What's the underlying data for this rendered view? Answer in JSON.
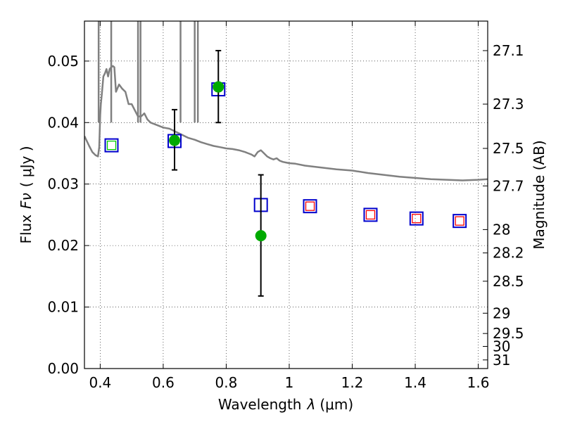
{
  "chart_data": {
    "type": "scatter",
    "xlabel": "Wavelength",
    "xlabel_symbol": "λ",
    "xlabel_unit": "(μm)",
    "ylabel": "Flux",
    "ylabel_symbol": "Fν",
    "ylabel_unit": "( μJy )",
    "y2label": "Magnitude (AB)",
    "xlim": [
      0.35,
      1.63
    ],
    "ylim": [
      0.0,
      0.0565
    ],
    "x_ticks": [
      0.4,
      0.6,
      0.8,
      1.0,
      1.2,
      1.4,
      1.6
    ],
    "x_tick_labels": [
      "0.4",
      "0.6",
      "0.8",
      "1",
      "1.2",
      "1.4",
      "1.6"
    ],
    "y_ticks": [
      0.0,
      0.01,
      0.02,
      0.03,
      0.04,
      0.05
    ],
    "y_tick_labels": [
      "0.00",
      "0.01",
      "0.02",
      "0.03",
      "0.04",
      "0.05"
    ],
    "y2_ticks": [
      {
        "label": "27.1",
        "flux": 0.0517
      },
      {
        "label": "27.3",
        "flux": 0.043
      },
      {
        "label": "27.5",
        "flux": 0.0358
      },
      {
        "label": "27.7",
        "flux": 0.0297
      },
      {
        "label": "28",
        "flux": 0.0226
      },
      {
        "label": "28.2",
        "flux": 0.0188
      },
      {
        "label": "28.5",
        "flux": 0.0142
      },
      {
        "label": "29",
        "flux": 0.009
      },
      {
        "label": "29.5",
        "flux": 0.0057
      },
      {
        "label": "30",
        "flux": 0.0036
      },
      {
        "label": "31",
        "flux": 0.0014
      }
    ],
    "grid": true,
    "colors": {
      "spectrum": "#808080",
      "observed": "#00aa00",
      "errorbar": "#000000",
      "model_box": "#0000cc",
      "inner_green": "#00cc00",
      "inner_red": "#ff0000"
    },
    "series": [
      {
        "kind": "spectrum",
        "x": [
          0.35,
          0.365,
          0.375,
          0.385,
          0.393,
          0.397,
          0.4,
          0.402,
          0.405,
          0.41,
          0.415,
          0.42,
          0.425,
          0.43,
          0.435,
          0.44,
          0.445,
          0.45,
          0.46,
          0.47,
          0.48,
          0.49,
          0.5,
          0.51,
          0.52,
          0.53,
          0.54,
          0.55,
          0.56,
          0.58,
          0.6,
          0.62,
          0.64,
          0.66,
          0.68,
          0.7,
          0.72,
          0.74,
          0.76,
          0.78,
          0.8,
          0.82,
          0.84,
          0.86,
          0.87,
          0.88,
          0.89,
          0.9,
          0.91,
          0.92,
          0.93,
          0.94,
          0.95,
          0.96,
          0.97,
          0.98,
          0.99,
          1.0,
          1.02,
          1.05,
          1.1,
          1.15,
          1.2,
          1.25,
          1.3,
          1.35,
          1.4,
          1.45,
          1.5,
          1.55,
          1.6,
          1.63
        ],
        "y": [
          0.0378,
          0.0362,
          0.0352,
          0.0347,
          0.0345,
          0.036,
          0.0412,
          0.043,
          0.0445,
          0.0475,
          0.048,
          0.0487,
          0.0475,
          0.0487,
          0.049,
          0.0492,
          0.049,
          0.045,
          0.0462,
          0.0455,
          0.045,
          0.043,
          0.043,
          0.042,
          0.041,
          0.041,
          0.0415,
          0.0405,
          0.04,
          0.0396,
          0.0392,
          0.039,
          0.0385,
          0.038,
          0.0375,
          0.0372,
          0.0368,
          0.0365,
          0.0362,
          0.036,
          0.0358,
          0.0357,
          0.0355,
          0.0352,
          0.035,
          0.0348,
          0.0345,
          0.0352,
          0.0355,
          0.035,
          0.0345,
          0.0342,
          0.034,
          0.0342,
          0.0338,
          0.0336,
          0.0335,
          0.0334,
          0.0333,
          0.033,
          0.0327,
          0.0324,
          0.0322,
          0.0318,
          0.0315,
          0.0312,
          0.031,
          0.0308,
          0.0307,
          0.0306,
          0.0307,
          0.0308
        ]
      },
      {
        "kind": "observed",
        "x": [
          0.636,
          0.775,
          0.91
        ],
        "y": [
          0.0371,
          0.0458,
          0.0216
        ],
        "yerr_low": [
          0.0323,
          0.04,
          0.0118
        ],
        "yerr_high": [
          0.0421,
          0.0517,
          0.0315
        ]
      },
      {
        "kind": "model",
        "x": [
          0.436,
          0.636,
          0.775,
          0.91,
          1.066,
          1.258,
          1.404,
          1.541
        ],
        "y": [
          0.0363,
          0.037,
          0.0454,
          0.0266,
          0.0264,
          0.025,
          0.0244,
          0.024
        ],
        "inner": [
          "green",
          "none",
          "none",
          "none",
          "red",
          "red",
          "red",
          "red"
        ]
      }
    ]
  }
}
